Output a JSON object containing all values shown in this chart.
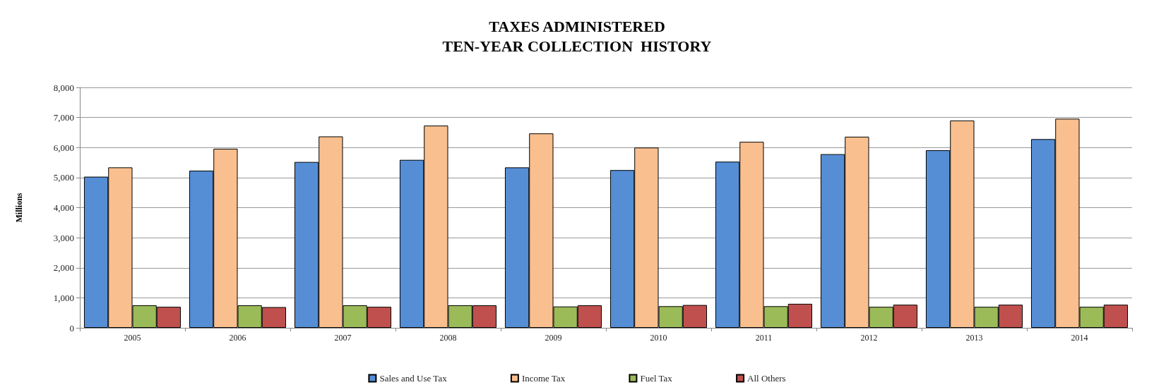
{
  "chart_data": {
    "type": "bar",
    "title": "TAXES ADMINISTERED\nTEN-YEAR COLLECTION  HISTORY",
    "ylabel": "Millions",
    "categories": [
      "2005",
      "2006",
      "2007",
      "2008",
      "2009",
      "2010",
      "2011",
      "2012",
      "2013",
      "2014"
    ],
    "series": [
      {
        "name": "Sales and Use Tax",
        "color": "#558ed5",
        "values": [
          5030,
          5230,
          5520,
          5590,
          5340,
          5250,
          5530,
          5780,
          5910,
          6280
        ]
      },
      {
        "name": "Income Tax",
        "color": "#f9bf8f",
        "values": [
          5340,
          5960,
          6370,
          6730,
          6470,
          6000,
          6190,
          6360,
          6900,
          6960
        ]
      },
      {
        "name": "Fuel Tax",
        "color": "#9bbb59",
        "values": [
          750,
          750,
          750,
          750,
          710,
          720,
          720,
          700,
          700,
          700
        ]
      },
      {
        "name": "All Others",
        "color": "#c0504d",
        "values": [
          700,
          690,
          700,
          750,
          750,
          760,
          800,
          770,
          770,
          770
        ]
      }
    ],
    "ylim": [
      0,
      8000
    ],
    "yticks": [
      {
        "value": 0,
        "label": "0"
      },
      {
        "value": 1000,
        "label": "1,000"
      },
      {
        "value": 2000,
        "label": "2,000"
      },
      {
        "value": 3000,
        "label": "3,000"
      },
      {
        "value": 4000,
        "label": "4,000"
      },
      {
        "value": 5000,
        "label": "5,000"
      },
      {
        "value": 6000,
        "label": "6,000"
      },
      {
        "value": 7000,
        "label": "7,000"
      },
      {
        "value": 8000,
        "label": "8,000"
      }
    ],
    "grid": "y",
    "legend": "bottom"
  }
}
